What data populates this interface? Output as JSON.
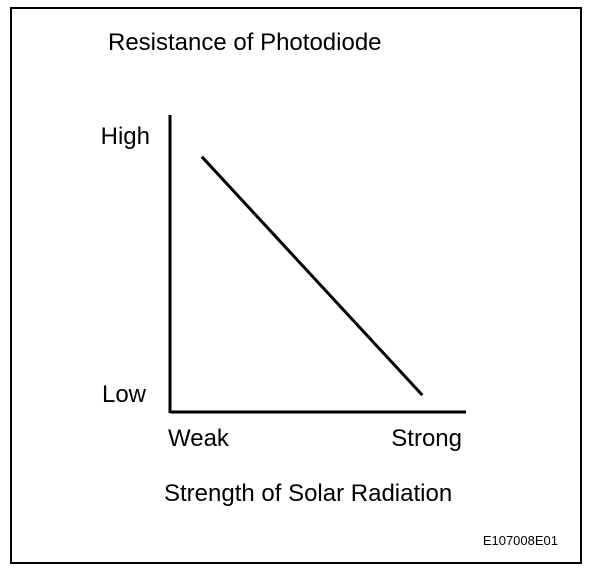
{
  "chart_data": {
    "type": "line",
    "title": "Resistance of Photodiode",
    "xlabel": "Strength of Solar Radiation",
    "ylabel": "",
    "x_tick_labels": [
      "Weak",
      "Strong"
    ],
    "y_tick_labels": [
      "Low",
      "High"
    ],
    "xlim": [
      0,
      1
    ],
    "ylim": [
      0,
      1
    ],
    "grid": false,
    "series": [
      {
        "x": [
          0.1,
          0.84
        ],
        "y": [
          0.85,
          0.05
        ]
      }
    ]
  },
  "figure_code": "E107008E01",
  "colors": {
    "line": "#000000",
    "axis": "#000000",
    "background": "#ffffff"
  }
}
